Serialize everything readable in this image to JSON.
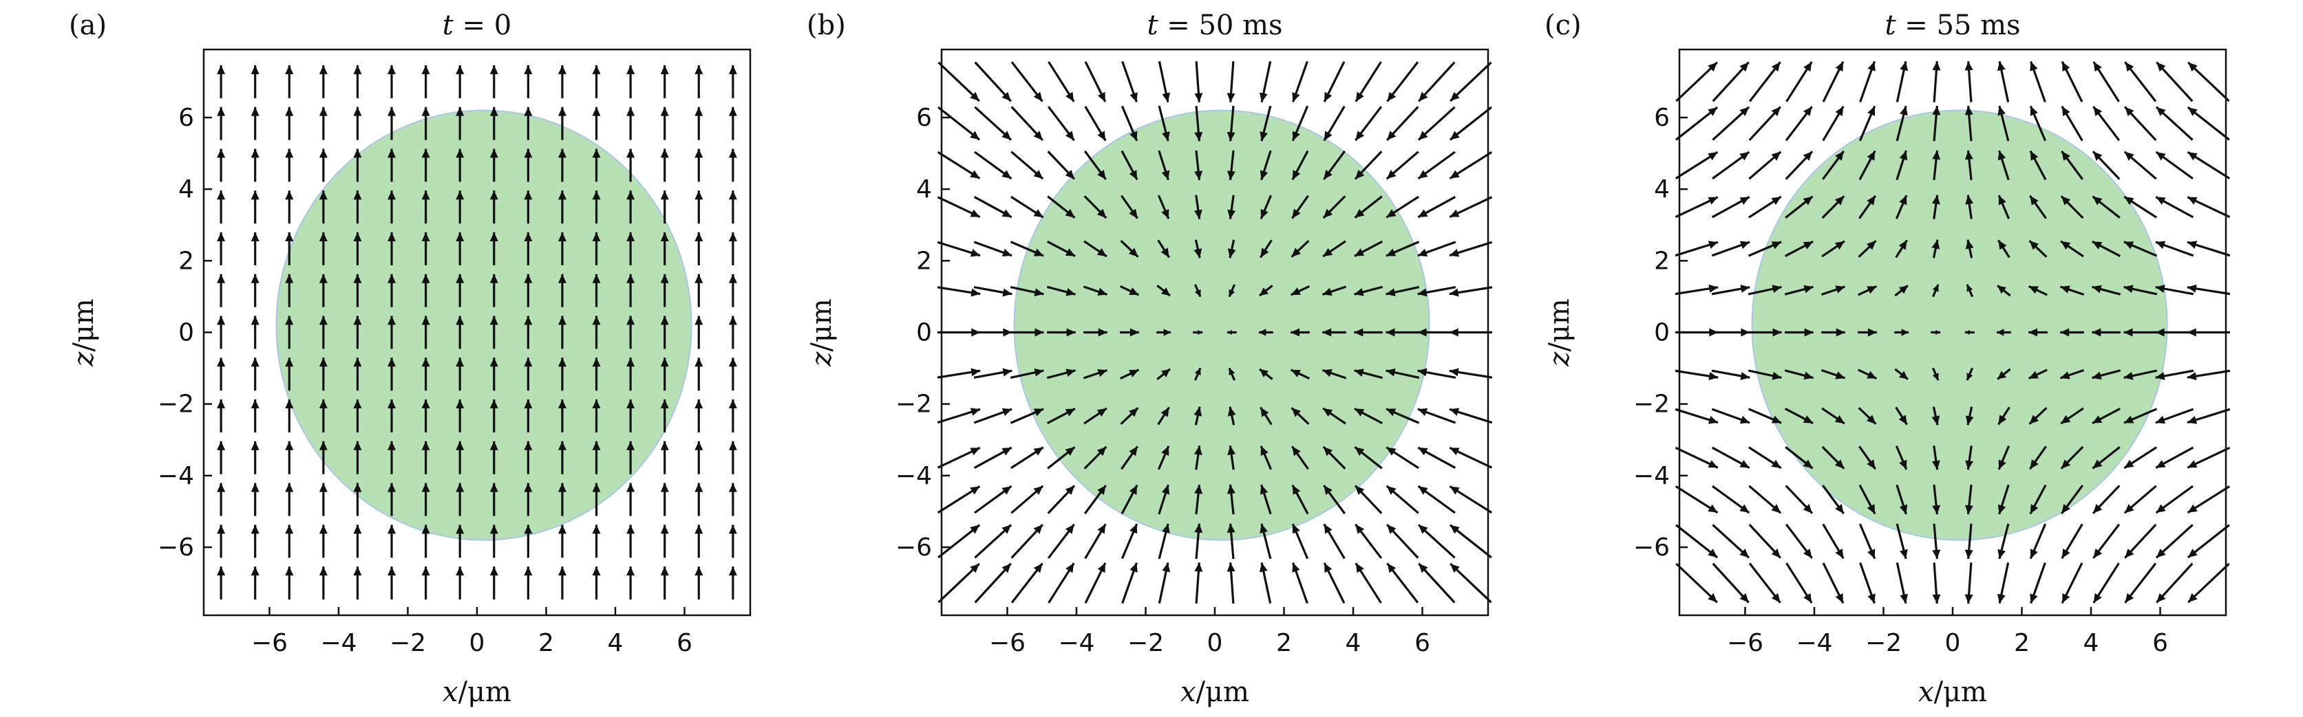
{
  "figure": {
    "panels": [
      {
        "label": "(a)",
        "title_var": "t",
        "title_rest": " = 0",
        "mode": "up"
      },
      {
        "label": "(b)",
        "title_var": "t",
        "title_rest": " = 50 ms",
        "mode": "radial_in"
      },
      {
        "label": "(c)",
        "title_var": "t",
        "title_rest": " = 55 ms",
        "mode": "radial_mixed"
      }
    ],
    "xlabel_var": "x",
    "xlabel_unit": "/μm",
    "ylabel_var": "z",
    "ylabel_unit": "/μm",
    "circle_color": "#b7e1b4",
    "circle_edge_color": "#a9c6e8",
    "arrow_color": "#111111"
  },
  "chart_data": [
    {
      "type": "quiver",
      "title": "t = 0",
      "xlabel": "x/μm",
      "ylabel": "z/μm",
      "xlim": [
        -7.9,
        7.9
      ],
      "ylim": [
        -7.9,
        7.9
      ],
      "xticks": [
        -6,
        -4,
        -2,
        0,
        2,
        4,
        6
      ],
      "yticks": [
        -6,
        -4,
        -2,
        0,
        2,
        4,
        6
      ],
      "xtick_labels": [
        "−6",
        "−4",
        "−2",
        "0",
        "2",
        "4",
        "6"
      ],
      "ytick_labels": [
        "−6",
        "−4",
        "−2",
        "0",
        "2",
        "4",
        "6"
      ],
      "grid": false,
      "circle": {
        "cx": 0.2,
        "cz": 0.2,
        "r": 6.0
      },
      "field": "uniform, pointing +z everywhere"
    },
    {
      "type": "quiver",
      "title": "t = 50 ms",
      "xlabel": "x/μm",
      "ylabel": "z/μm",
      "xlim": [
        -7.9,
        7.9
      ],
      "ylim": [
        -7.9,
        7.9
      ],
      "xticks": [
        -6,
        -4,
        -2,
        0,
        2,
        4,
        6
      ],
      "yticks": [
        -6,
        -4,
        -2,
        0,
        2,
        4,
        6
      ],
      "xtick_labels": [
        "−6",
        "−4",
        "−2",
        "0",
        "2",
        "4",
        "6"
      ],
      "ytick_labels": [
        "−6",
        "−4",
        "−2",
        "0",
        "2",
        "4",
        "6"
      ],
      "grid": false,
      "circle": {
        "cx": 0.2,
        "cz": 0.2,
        "r": 6.0
      },
      "field": "arrows point toward the center, length increasing with radius"
    },
    {
      "type": "quiver",
      "title": "t = 55 ms",
      "xlabel": "x/μm",
      "ylabel": "z/μm",
      "xlim": [
        -7.9,
        7.9
      ],
      "ylim": [
        -7.9,
        7.9
      ],
      "xticks": [
        -6,
        -4,
        -2,
        0,
        2,
        4,
        6
      ],
      "yticks": [
        -6,
        -4,
        -2,
        0,
        2,
        4,
        6
      ],
      "xtick_labels": [
        "−6",
        "−4",
        "−2",
        "0",
        "2",
        "4",
        "6"
      ],
      "ytick_labels": [
        "−6",
        "−4",
        "−2",
        "0",
        "2",
        "4",
        "6"
      ],
      "grid": false,
      "circle": {
        "cx": 0.2,
        "cz": 0.2,
        "r": 6.0
      },
      "field": "inside the cloud arrows point inward horizontally; outside they point outward/vertically, length increasing with radius"
    }
  ]
}
